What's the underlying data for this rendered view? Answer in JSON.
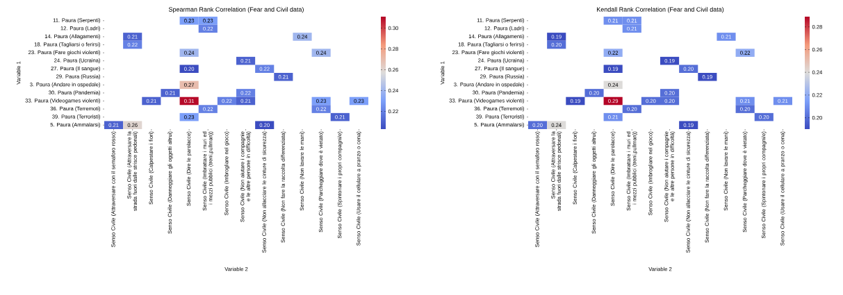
{
  "chart_data": [
    {
      "type": "heatmap",
      "title": "Spearman Rank Correlation (Fear and Civil data)",
      "xlabel": "Variable 2",
      "ylabel": "Variable 1",
      "categories": [
        "Senso Civile (Attraversare con il semaforo rosso)",
        "Senso Civile (Attraversare la strada fuori dalle strisce pedonali)",
        "Senso Civile (Calpestare i fiori)",
        "Senso Civile (Danneggiare gli oggetti altrui)",
        "Senso Civile (Dire le parolacce)",
        "Senso Civile (Imbrattare i muri ed i mezzi pubblici (treni,pullman))",
        "Senso Civile (Imbrogliare nel gioco)",
        "Senso Civile (Non aiutare i compagnie e le altre persone in difficoltà)",
        "Senso Civile (Non allacciare le cinture di sicurezza)",
        "Senso Civile (Non fare la raccolta differenziata)",
        "Senso Civile (Non lavare le mani)",
        "Senso Civile (Parcheggiare dove è vietato)",
        "Senso Civile (Spintonare i propri compagni/e)",
        "Senso Civile (Usare il cellulare a pranzo o cena)"
      ],
      "y_categories": [
        "11. Paura (Serpenti)",
        "12. Paura (Ladri)",
        "14. Paura (Allagamenti)",
        "18. Paura (Tagliarsi o ferirsi)",
        "23. Paura (Fare giochi violenti)",
        "24. Paura (Ucraina)",
        "27. Paura (Il sangue)",
        "29. Paura (Russia)",
        "3. Paura (Andare in ospedale)",
        "30. Paura (Pandemia)",
        "33. Paura (Videogames violenti)",
        "36. Paura (Terremoti)",
        "39. Paura (Terroristi)",
        "5. Paura (Ammalarsi)"
      ],
      "cells": [
        [
          null,
          null,
          null,
          null,
          0.23,
          0.23,
          null,
          null,
          null,
          null,
          null,
          null,
          null,
          null
        ],
        [
          null,
          null,
          null,
          null,
          null,
          0.22,
          null,
          null,
          null,
          null,
          null,
          null,
          null,
          null
        ],
        [
          null,
          0.21,
          null,
          null,
          null,
          null,
          null,
          null,
          null,
          null,
          0.24,
          null,
          null,
          null
        ],
        [
          null,
          0.22,
          null,
          null,
          null,
          null,
          null,
          null,
          null,
          null,
          null,
          null,
          null,
          null
        ],
        [
          null,
          null,
          null,
          null,
          0.24,
          null,
          null,
          null,
          null,
          null,
          null,
          0.24,
          null,
          null
        ],
        [
          null,
          null,
          null,
          null,
          null,
          null,
          null,
          0.21,
          null,
          null,
          null,
          null,
          null,
          null
        ],
        [
          null,
          null,
          null,
          null,
          0.2,
          null,
          null,
          null,
          0.22,
          null,
          null,
          null,
          null,
          null
        ],
        [
          null,
          null,
          null,
          null,
          null,
          null,
          null,
          null,
          null,
          0.21,
          null,
          null,
          null,
          null
        ],
        [
          null,
          null,
          null,
          null,
          0.27,
          null,
          null,
          null,
          null,
          null,
          null,
          null,
          null,
          null
        ],
        [
          null,
          null,
          null,
          0.21,
          null,
          null,
          null,
          0.22,
          null,
          null,
          null,
          null,
          null,
          null
        ],
        [
          null,
          null,
          0.21,
          null,
          0.31,
          null,
          0.22,
          0.21,
          null,
          null,
          null,
          0.23,
          null,
          0.23
        ],
        [
          null,
          null,
          null,
          null,
          null,
          0.22,
          null,
          null,
          null,
          null,
          null,
          0.22,
          null,
          null
        ],
        [
          null,
          null,
          null,
          null,
          0.23,
          null,
          null,
          null,
          null,
          null,
          null,
          null,
          0.21,
          null
        ],
        [
          0.21,
          0.26,
          null,
          null,
          null,
          null,
          null,
          null,
          0.2,
          null,
          null,
          null,
          null,
          null
        ]
      ],
      "cell_labels": [
        [
          null,
          null,
          null,
          null,
          "0.23",
          "0.23",
          null,
          null,
          null,
          null,
          null,
          null,
          null,
          null
        ],
        [
          null,
          null,
          null,
          null,
          null,
          "0.22",
          null,
          null,
          null,
          null,
          null,
          null,
          null,
          null
        ],
        [
          null,
          "0.21",
          null,
          null,
          null,
          null,
          null,
          null,
          null,
          null,
          "0.24",
          null,
          null,
          null
        ],
        [
          null,
          "0.22",
          null,
          null,
          null,
          null,
          null,
          null,
          null,
          null,
          null,
          null,
          null,
          null
        ],
        [
          null,
          null,
          null,
          null,
          "0.24",
          null,
          null,
          null,
          null,
          null,
          null,
          "0.24",
          null,
          null
        ],
        [
          null,
          null,
          null,
          null,
          null,
          null,
          null,
          "0.21",
          null,
          null,
          null,
          null,
          null,
          null
        ],
        [
          null,
          null,
          null,
          null,
          "0.20",
          null,
          null,
          null,
          "0.22",
          null,
          null,
          null,
          null,
          null
        ],
        [
          null,
          null,
          null,
          null,
          null,
          null,
          null,
          null,
          null,
          "0.21",
          null,
          null,
          null,
          null
        ],
        [
          null,
          null,
          null,
          null,
          "0.27",
          null,
          null,
          null,
          null,
          null,
          null,
          null,
          null,
          null
        ],
        [
          null,
          null,
          null,
          "0.21",
          null,
          null,
          null,
          "0.22",
          null,
          null,
          null,
          null,
          null,
          null
        ],
        [
          null,
          null,
          "0.21",
          null,
          "0.31",
          null,
          "0.22",
          "0.21",
          null,
          null,
          null,
          "0.23",
          null,
          "0.23"
        ],
        [
          null,
          null,
          null,
          null,
          null,
          "0.22",
          null,
          null,
          null,
          null,
          null,
          "0.22",
          null,
          null
        ],
        [
          null,
          null,
          null,
          null,
          "0.23",
          null,
          null,
          null,
          null,
          null,
          null,
          null,
          "0.21",
          null
        ],
        [
          "0.21",
          "0.26",
          null,
          null,
          null,
          null,
          null,
          null,
          "0.20",
          null,
          null,
          null,
          null,
          null
        ]
      ],
      "clim": [
        0.203,
        0.311
      ],
      "cticks": [
        0.22,
        0.24,
        0.26,
        0.28,
        {
          "value": 0.3,
          "label": "0.30"
        }
      ]
    },
    {
      "type": "heatmap",
      "title": "Kendall Rank Correlation (Fear and Civil data)",
      "xlabel": "Variable 2",
      "ylabel": "Variable 1",
      "categories": [
        "Senso Civile (Attraversare con il semaforo rosso)",
        "Senso Civile (Attraversare la strada fuori dalle strisce pedonali)",
        "Senso Civile (Calpestare i fiori)",
        "Senso Civile (Danneggiare gli oggetti altrui)",
        "Senso Civile (Dire le parolacce)",
        "Senso Civile (Imbrattare i muri ed i mezzi pubblici (treni,pullman))",
        "Senso Civile (Imbrogliare nel gioco)",
        "Senso Civile (Non aiutare i compagnie e le altre persone in difficoltà)",
        "Senso Civile (Non allacciare le cinture di sicurezza)",
        "Senso Civile (Non fare la raccolta differenziata)",
        "Senso Civile (Non lavare le mani)",
        "Senso Civile (Parcheggiare dove è vietato)",
        "Senso Civile (Spintonare i propri compagni/e)",
        "Senso Civile (Usare il cellulare a pranzo o cena)"
      ],
      "y_categories": [
        "11. Paura (Serpenti)",
        "12. Paura (Ladri)",
        "14. Paura (Allagamenti)",
        "18. Paura (Tagliarsi o ferirsi)",
        "23. Paura (Fare giochi violenti)",
        "24. Paura (Ucraina)",
        "27. Paura (Il sangue)",
        "29. Paura (Russia)",
        "3. Paura (Andare in ospedale)",
        "30. Paura (Pandemia)",
        "33. Paura (Videogames violenti)",
        "36. Paura (Terremoti)",
        "39. Paura (Terroristi)",
        "5. Paura (Ammalarsi)"
      ],
      "cells": [
        [
          null,
          null,
          null,
          null,
          0.21,
          0.21,
          null,
          null,
          null,
          null,
          null,
          null,
          null,
          null
        ],
        [
          null,
          null,
          null,
          null,
          null,
          0.21,
          null,
          null,
          null,
          null,
          null,
          null,
          null,
          null
        ],
        [
          null,
          0.19,
          null,
          null,
          null,
          null,
          null,
          null,
          null,
          null,
          0.21,
          null,
          null,
          null
        ],
        [
          null,
          0.2,
          null,
          null,
          null,
          null,
          null,
          null,
          null,
          null,
          null,
          null,
          null,
          null
        ],
        [
          null,
          null,
          null,
          null,
          0.22,
          null,
          null,
          null,
          null,
          null,
          null,
          0.22,
          null,
          null
        ],
        [
          null,
          null,
          null,
          null,
          null,
          null,
          null,
          0.19,
          null,
          null,
          null,
          null,
          null,
          null
        ],
        [
          null,
          null,
          null,
          null,
          0.19,
          null,
          null,
          null,
          0.2,
          null,
          null,
          null,
          null,
          null
        ],
        [
          null,
          null,
          null,
          null,
          null,
          null,
          null,
          null,
          null,
          0.19,
          null,
          null,
          null,
          null
        ],
        [
          null,
          null,
          null,
          null,
          0.24,
          null,
          null,
          null,
          null,
          null,
          null,
          null,
          null,
          null
        ],
        [
          null,
          null,
          null,
          0.2,
          null,
          null,
          null,
          0.2,
          null,
          null,
          null,
          null,
          null,
          null
        ],
        [
          null,
          null,
          0.19,
          null,
          0.29,
          null,
          0.2,
          0.2,
          null,
          null,
          null,
          0.21,
          null,
          0.21
        ],
        [
          null,
          null,
          null,
          null,
          null,
          0.2,
          null,
          null,
          null,
          null,
          null,
          0.2,
          null,
          null
        ],
        [
          null,
          null,
          null,
          null,
          0.21,
          null,
          null,
          null,
          null,
          null,
          null,
          null,
          0.2,
          null
        ],
        [
          0.2,
          0.24,
          null,
          null,
          null,
          null,
          null,
          null,
          0.19,
          null,
          null,
          null,
          null,
          null
        ]
      ],
      "cell_labels": [
        [
          null,
          null,
          null,
          null,
          "0.21",
          "0.21",
          null,
          null,
          null,
          null,
          null,
          null,
          null,
          null
        ],
        [
          null,
          null,
          null,
          null,
          null,
          "0.21",
          null,
          null,
          null,
          null,
          null,
          null,
          null,
          null
        ],
        [
          null,
          "0.19",
          null,
          null,
          null,
          null,
          null,
          null,
          null,
          null,
          "0.21",
          null,
          null,
          null
        ],
        [
          null,
          "0.20",
          null,
          null,
          null,
          null,
          null,
          null,
          null,
          null,
          null,
          null,
          null,
          null
        ],
        [
          null,
          null,
          null,
          null,
          "0.22",
          null,
          null,
          null,
          null,
          null,
          null,
          "0.22",
          null,
          null
        ],
        [
          null,
          null,
          null,
          null,
          null,
          null,
          null,
          "0.19",
          null,
          null,
          null,
          null,
          null,
          null
        ],
        [
          null,
          null,
          null,
          null,
          "0.19",
          null,
          null,
          null,
          "0.20",
          null,
          null,
          null,
          null,
          null
        ],
        [
          null,
          null,
          null,
          null,
          null,
          null,
          null,
          null,
          null,
          "0.19",
          null,
          null,
          null,
          null
        ],
        [
          null,
          null,
          null,
          null,
          "0.24",
          null,
          null,
          null,
          null,
          null,
          null,
          null,
          null,
          null
        ],
        [
          null,
          null,
          null,
          "0.20",
          null,
          null,
          null,
          "0.20",
          null,
          null,
          null,
          null,
          null,
          null
        ],
        [
          null,
          null,
          "0.19",
          null,
          "0.29",
          null,
          "0.20",
          "0.20",
          null,
          null,
          null,
          "0.21",
          null,
          "0.21"
        ],
        [
          null,
          null,
          null,
          null,
          null,
          "0.20",
          null,
          null,
          null,
          null,
          null,
          "0.20",
          null,
          null
        ],
        [
          null,
          null,
          null,
          null,
          "0.21",
          null,
          null,
          null,
          null,
          null,
          null,
          null,
          "0.20",
          null
        ],
        [
          "0.20",
          "0.24",
          null,
          null,
          null,
          null,
          null,
          null,
          "0.19",
          null,
          null,
          null,
          null,
          null
        ]
      ],
      "clim": [
        0.19,
        0.289
      ],
      "cticks": [
        {
          "value": 0.2,
          "label": "0.20"
        },
        0.22,
        0.24,
        0.26,
        0.28
      ]
    }
  ]
}
